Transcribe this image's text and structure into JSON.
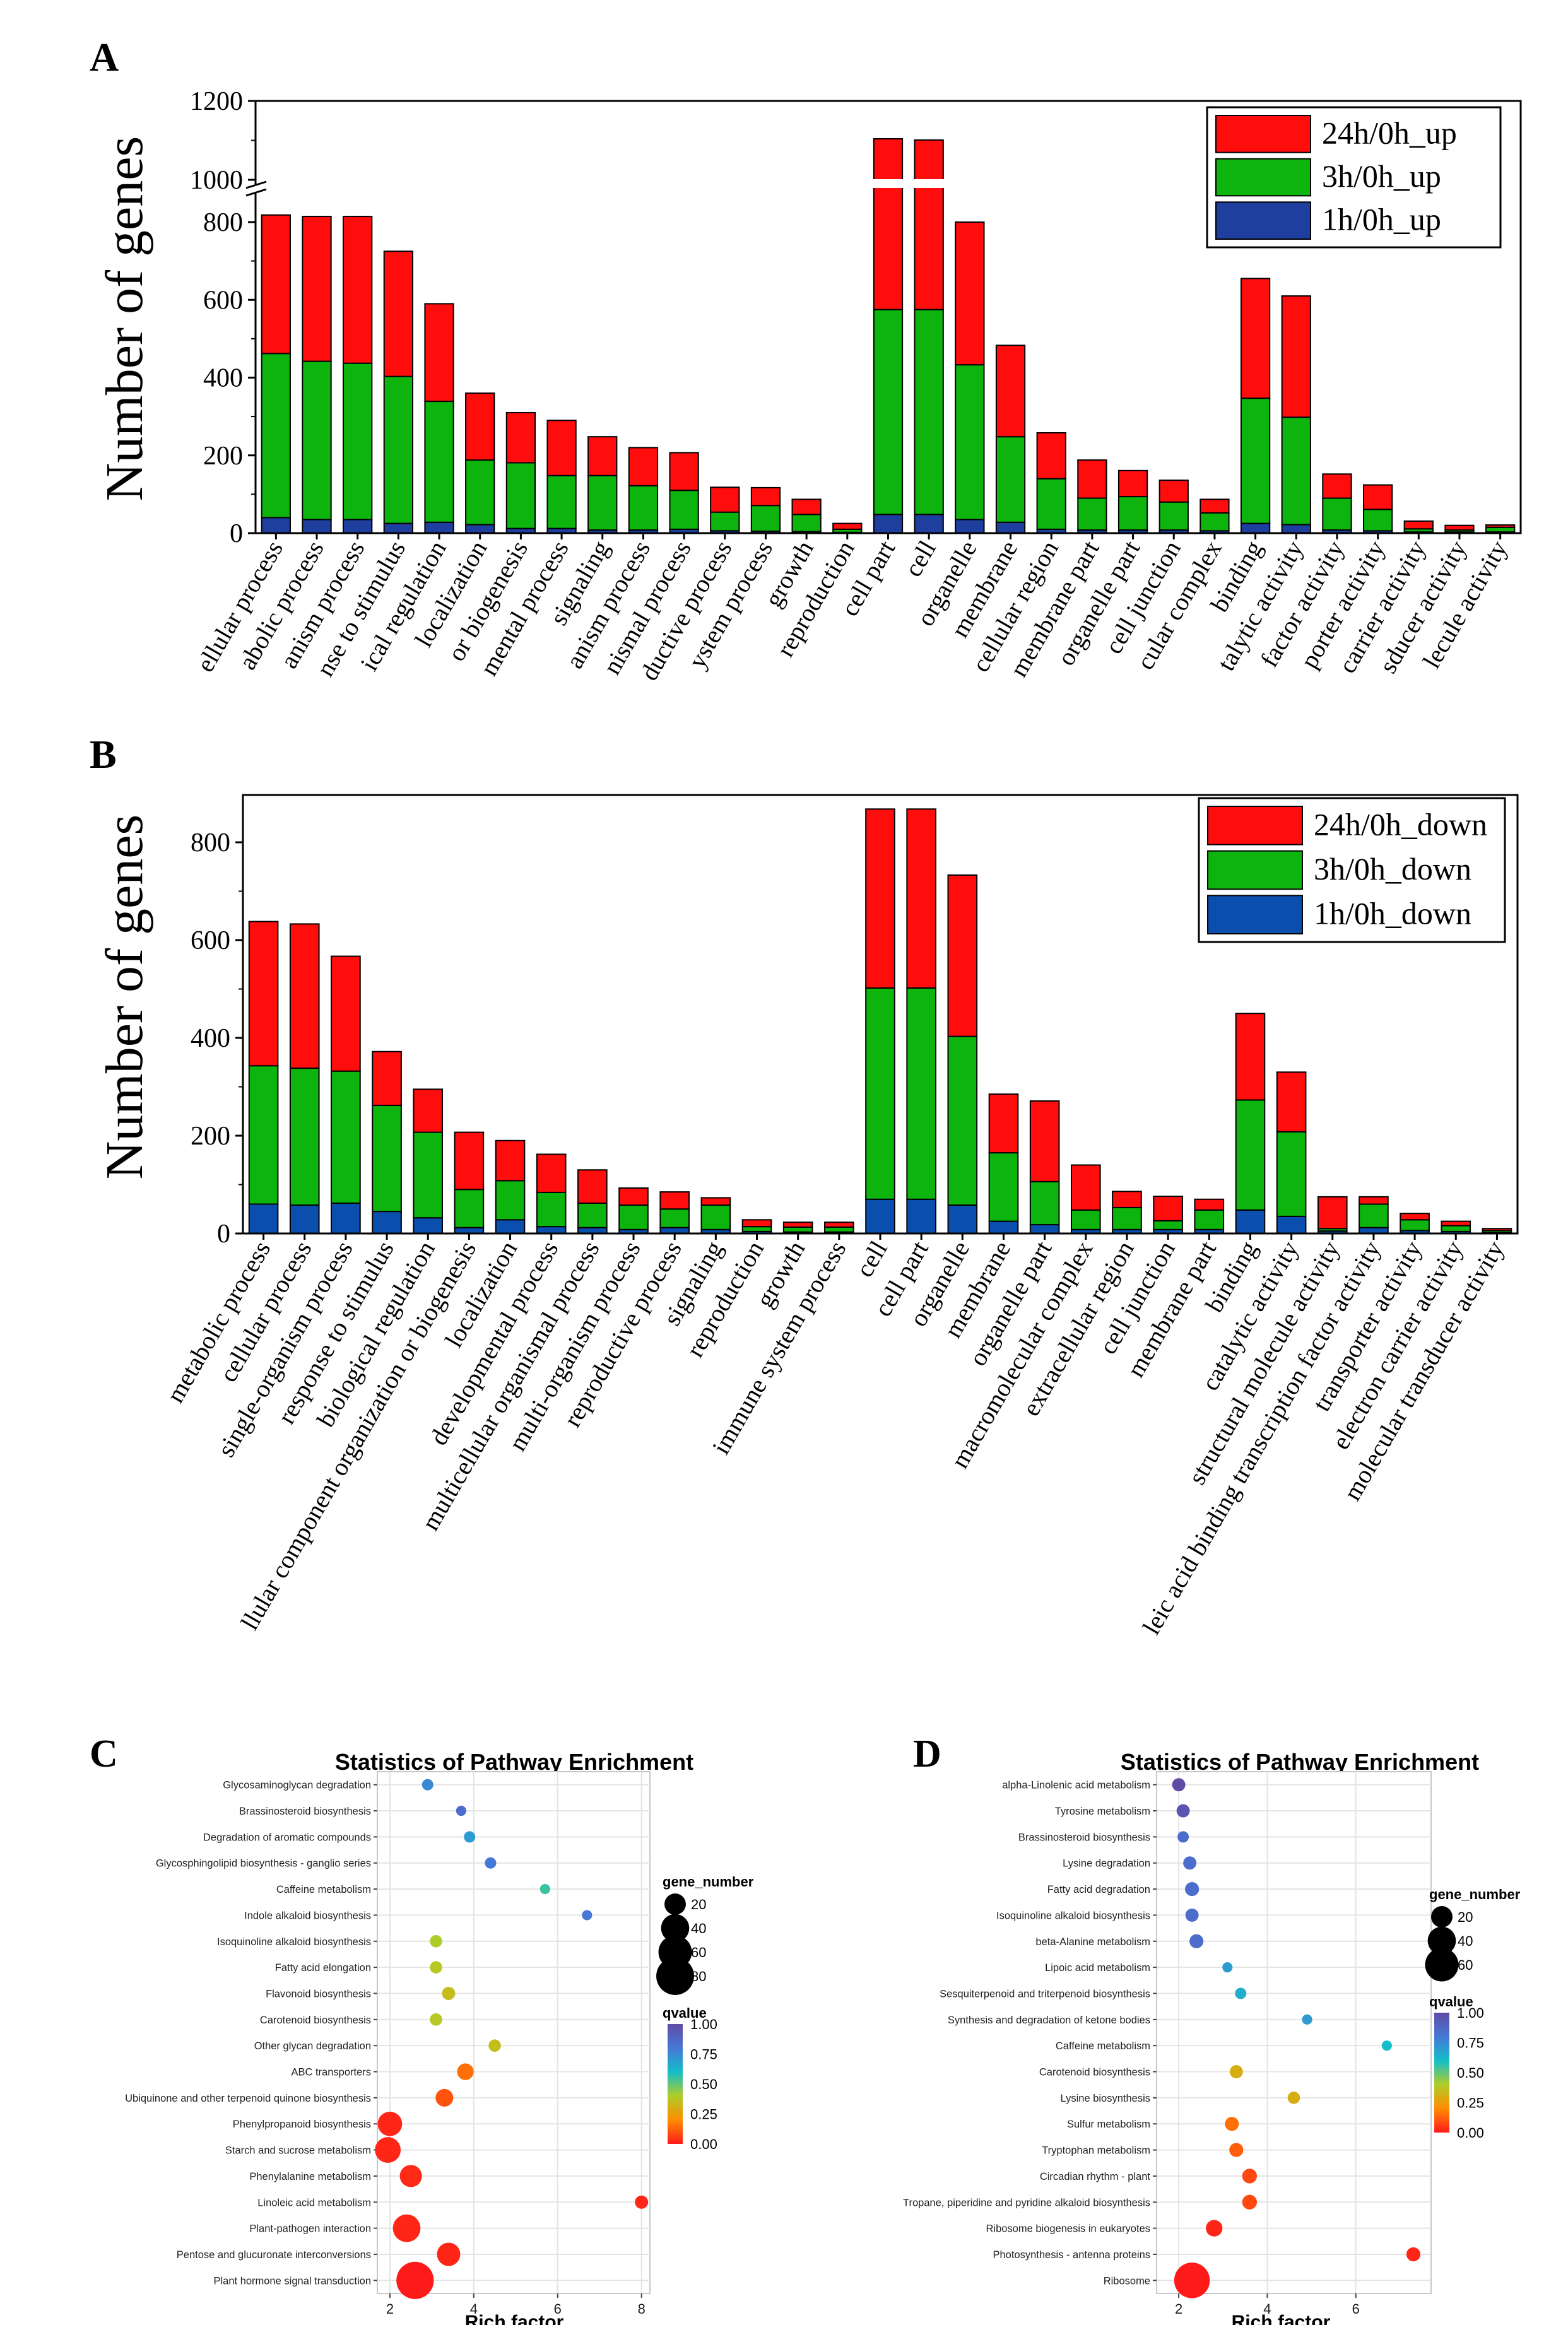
{
  "panels": {
    "a": "A",
    "b": "B",
    "c": "C",
    "d": "D"
  },
  "colors": {
    "up24": "#ff0d0d",
    "up3": "#0db40d",
    "up1": "#1f3f9f",
    "down1": "#0a4fae",
    "axis": "#000000",
    "q_low": "#ff1a1a",
    "q_mid1": "#ffa500",
    "q_mid2": "#a8cf27",
    "q_mid3": "#11c0d6",
    "q_mid4": "#3d7fd7",
    "q_high": "#5a4aa3"
  },
  "chart_data": [
    {
      "id": "A",
      "type": "bar",
      "stacked": true,
      "ylabel": "Number of genes",
      "ytick_labels": [
        "0",
        "200",
        "400",
        "600",
        "800",
        "1000",
        "1200"
      ],
      "ylim_lower": [
        0,
        850
      ],
      "ylim_upper": [
        1000,
        1200
      ],
      "legend": [
        "24h/0h_up",
        "3h/0h_up",
        "1h/0h_up"
      ],
      "categories": [
        "ellular process",
        "abolic process",
        "anism process",
        "nse to stimulus",
        "ical regulation",
        "localization",
        "or biogenesis",
        "mental process",
        "signaling",
        "anism process",
        "nismal process",
        "ductive process",
        "ystem process",
        "growth",
        "reproduction",
        "cell part",
        "cell",
        "organelle",
        "membrane",
        "cellular region",
        "membrane part",
        "organelle part",
        "cell junction",
        "cular complex",
        "binding",
        "talytic activity",
        "factor activity",
        "porter activity",
        "carrier activity",
        "sducer activity",
        "lecule activity"
      ],
      "series": [
        {
          "name": "1h/0h_up",
          "values": [
            40,
            35,
            35,
            25,
            28,
            22,
            12,
            12,
            8,
            8,
            10,
            6,
            5,
            4,
            2,
            48,
            48,
            35,
            28,
            10,
            8,
            8,
            8,
            6,
            25,
            22,
            8,
            6,
            3,
            3,
            3
          ]
        },
        {
          "name": "3h/0h_up",
          "values": [
            422,
            407,
            402,
            378,
            311,
            166,
            169,
            136,
            140,
            114,
            100,
            48,
            66,
            44,
            8,
            527,
            527,
            398,
            220,
            130,
            82,
            86,
            72,
            46,
            322,
            276,
            82,
            55,
            8,
            5,
            12
          ]
        },
        {
          "name": "24h/0h_up",
          "values": [
            418,
            433,
            438,
            322,
            251,
            172,
            129,
            142,
            100,
            98,
            97,
            64,
            46,
            39,
            15,
            529,
            526,
            367,
            235,
            118,
            98,
            67,
            56,
            35,
            308,
            312,
            62,
            63,
            20,
            12,
            6
          ]
        }
      ]
    },
    {
      "id": "B",
      "type": "bar",
      "stacked": true,
      "ylabel": "Number of genes",
      "ytick_labels": [
        "0",
        "200",
        "400",
        "600",
        "800"
      ],
      "ylim": [
        0,
        900
      ],
      "legend": [
        "24h/0h_down",
        "3h/0h_down",
        "1h/0h_down"
      ],
      "categories": [
        "metabolic process",
        "cellular process",
        "single-organism process",
        "response to stimulus",
        "biological regulation",
        "llular component organization or biogenesis",
        "localization",
        "developmental process",
        "multicellular organismal process",
        "multi-organism process",
        "reproductive process",
        "signaling",
        "reproduction",
        "growth",
        "immune system process",
        "cell",
        "cell part",
        "organelle",
        "membrane",
        "organelle part",
        "macromolecular complex",
        "extracellular region",
        "cell junction",
        "membrane part",
        "binding",
        "catalytic activity",
        "structural molecule activity",
        "leic acid binding transcription factor activity",
        "transporter activity",
        "electron carrier activity",
        "molecular transducer activity"
      ],
      "series": [
        {
          "name": "1h/0h_down",
          "values": [
            60,
            58,
            62,
            45,
            32,
            12,
            28,
            14,
            12,
            8,
            12,
            8,
            4,
            3,
            3,
            70,
            70,
            58,
            25,
            18,
            8,
            8,
            8,
            8,
            48,
            35,
            5,
            12,
            6,
            4,
            2
          ]
        },
        {
          "name": "3h/0h_down",
          "values": [
            283,
            280,
            270,
            217,
            175,
            78,
            80,
            70,
            50,
            50,
            38,
            50,
            10,
            10,
            10,
            432,
            432,
            345,
            140,
            88,
            40,
            45,
            18,
            40,
            225,
            173,
            5,
            48,
            22,
            12,
            4
          ]
        },
        {
          "name": "24h/0h_down",
          "values": [
            295,
            295,
            235,
            110,
            88,
            117,
            82,
            78,
            68,
            35,
            35,
            15,
            14,
            10,
            10,
            366,
            366,
            330,
            120,
            165,
            92,
            33,
            50,
            22,
            177,
            122,
            65,
            15,
            13,
            9,
            4
          ]
        }
      ]
    },
    {
      "id": "C",
      "type": "scatter",
      "title": "Statistics of Pathway Enrichment",
      "xlabel": "Rich factor",
      "xlim": [
        1.7,
        8.2
      ],
      "xticks": [
        "2",
        "4",
        "6",
        "8"
      ],
      "size_legend_title": "gene_number",
      "size_legend": [
        "20",
        "40",
        "60",
        "80"
      ],
      "color_legend_title": "qvalue",
      "color_legend": [
        "1.00",
        "0.75",
        "0.50",
        "0.25",
        "0.00"
      ],
      "pathways": [
        "Glycosaminoglycan degradation",
        "Brassinosteroid biosynthesis",
        "Degradation of aromatic compounds",
        "Glycosphingolipid biosynthesis - ganglio series",
        "Caffeine metabolism",
        "Indole alkaloid biosynthesis",
        "Isoquinoline alkaloid biosynthesis",
        "Fatty acid elongation",
        "Flavonoid biosynthesis",
        "Carotenoid biosynthesis",
        "Other glycan degradation",
        "ABC transporters",
        "Ubiquinone and other terpenoid quinone biosynthesis",
        "Phenylpropanoid biosynthesis",
        "Starch and sucrose metabolism",
        "Phenylalanine metabolism",
        "Linoleic acid metabolism",
        "Plant-pathogen interaction",
        "Pentose and glucuronate interconversions",
        "Plant hormone signal transduction"
      ],
      "rich_factor": [
        2.9,
        3.7,
        3.9,
        4.4,
        5.7,
        6.7,
        3.1,
        3.1,
        3.4,
        3.1,
        4.5,
        3.8,
        3.3,
        2.0,
        1.95,
        2.5,
        8.0,
        2.4,
        3.4,
        2.6
      ],
      "gene_number": [
        3,
        2,
        3,
        3,
        2,
        2,
        4,
        4,
        5,
        4,
        4,
        10,
        12,
        28,
        32,
        22,
        5,
        38,
        25,
        78
      ],
      "qvalue": [
        0.75,
        0.85,
        0.7,
        0.8,
        0.55,
        0.8,
        0.4,
        0.38,
        0.35,
        0.38,
        0.35,
        0.15,
        0.1,
        0.02,
        0.02,
        0.03,
        0.02,
        0.02,
        0.02,
        0.0
      ]
    },
    {
      "id": "D",
      "type": "scatter",
      "title": "Statistics of Pathway Enrichment",
      "xlabel": "Rich factor",
      "xlim": [
        1.5,
        7.7
      ],
      "xticks": [
        "2",
        "4",
        "6"
      ],
      "size_legend_title": "gene_number",
      "size_legend": [
        "20",
        "40",
        "60"
      ],
      "color_legend_title": "qvalue",
      "color_legend": [
        "1.00",
        "0.75",
        "0.50",
        "0.25",
        "0.00"
      ],
      "pathways": [
        "alpha-Linolenic acid metabolism",
        "Tyrosine metabolism",
        "Brassinosteroid biosynthesis",
        "Lysine degradation",
        "Fatty acid degradation",
        "Isoquinoline alkaloid biosynthesis",
        "beta-Alanine metabolism",
        "Lipoic acid metabolism",
        "Sesquiterpenoid and triterpenoid biosynthesis",
        "Synthesis and degradation of ketone bodies",
        "Caffeine metabolism",
        "Carotenoid biosynthesis",
        "Lysine biosynthesis",
        "Sulfur metabolism",
        "Tryptophan metabolism",
        "Circadian rhythm - plant",
        "Tropane, piperidine and pyridine alkaloid biosynthesis",
        "Ribosome biogenesis in eukaryotes",
        "Photosynthesis - antenna proteins",
        "Ribosome"
      ],
      "rich_factor": [
        2.0,
        2.1,
        2.1,
        2.25,
        2.3,
        2.3,
        2.4,
        3.1,
        3.4,
        4.9,
        6.7,
        3.3,
        4.6,
        3.2,
        3.3,
        3.6,
        3.6,
        2.8,
        7.3,
        2.3
      ],
      "gene_number": [
        5,
        5,
        3,
        5,
        6,
        5,
        6,
        2,
        3,
        2,
        2,
        5,
        4,
        6,
        6,
        7,
        7,
        10,
        6,
        70
      ],
      "qvalue": [
        1.0,
        0.95,
        0.85,
        0.85,
        0.85,
        0.85,
        0.85,
        0.7,
        0.65,
        0.7,
        0.6,
        0.3,
        0.3,
        0.15,
        0.12,
        0.08,
        0.08,
        0.02,
        0.02,
        0.0
      ]
    }
  ]
}
